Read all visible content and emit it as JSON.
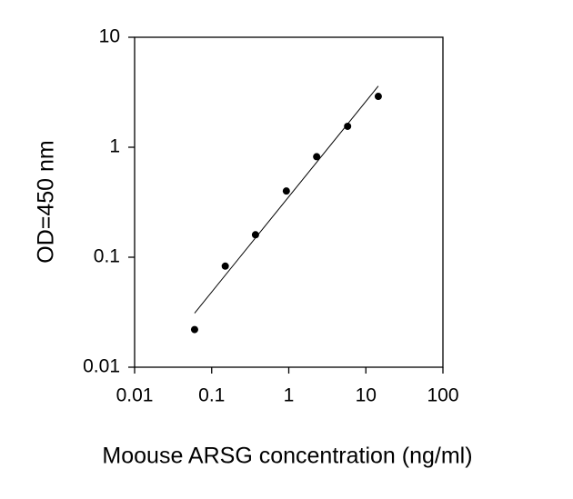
{
  "chart_data": {
    "type": "scatter",
    "x_label": "Moouse ARSG concentration (ng/ml)",
    "y_label": "OD=450 nm",
    "x": [
      0.06,
      0.15,
      0.37,
      0.93,
      2.3,
      5.8,
      14.5
    ],
    "values": [
      0.022,
      0.083,
      0.16,
      0.4,
      0.82,
      1.55,
      2.9
    ],
    "color": "#000000",
    "fit": {
      "x": [
        0.06,
        14.5
      ],
      "values": [
        0.031,
        3.6
      ]
    },
    "xscale": "log",
    "yscale": "log",
    "xlim": [
      0.01,
      100
    ],
    "ylim": [
      0.01,
      10
    ],
    "xticks": [
      0.01,
      0.1,
      1,
      10,
      100
    ],
    "yticks": [
      0.01,
      0.1,
      1,
      10
    ]
  }
}
